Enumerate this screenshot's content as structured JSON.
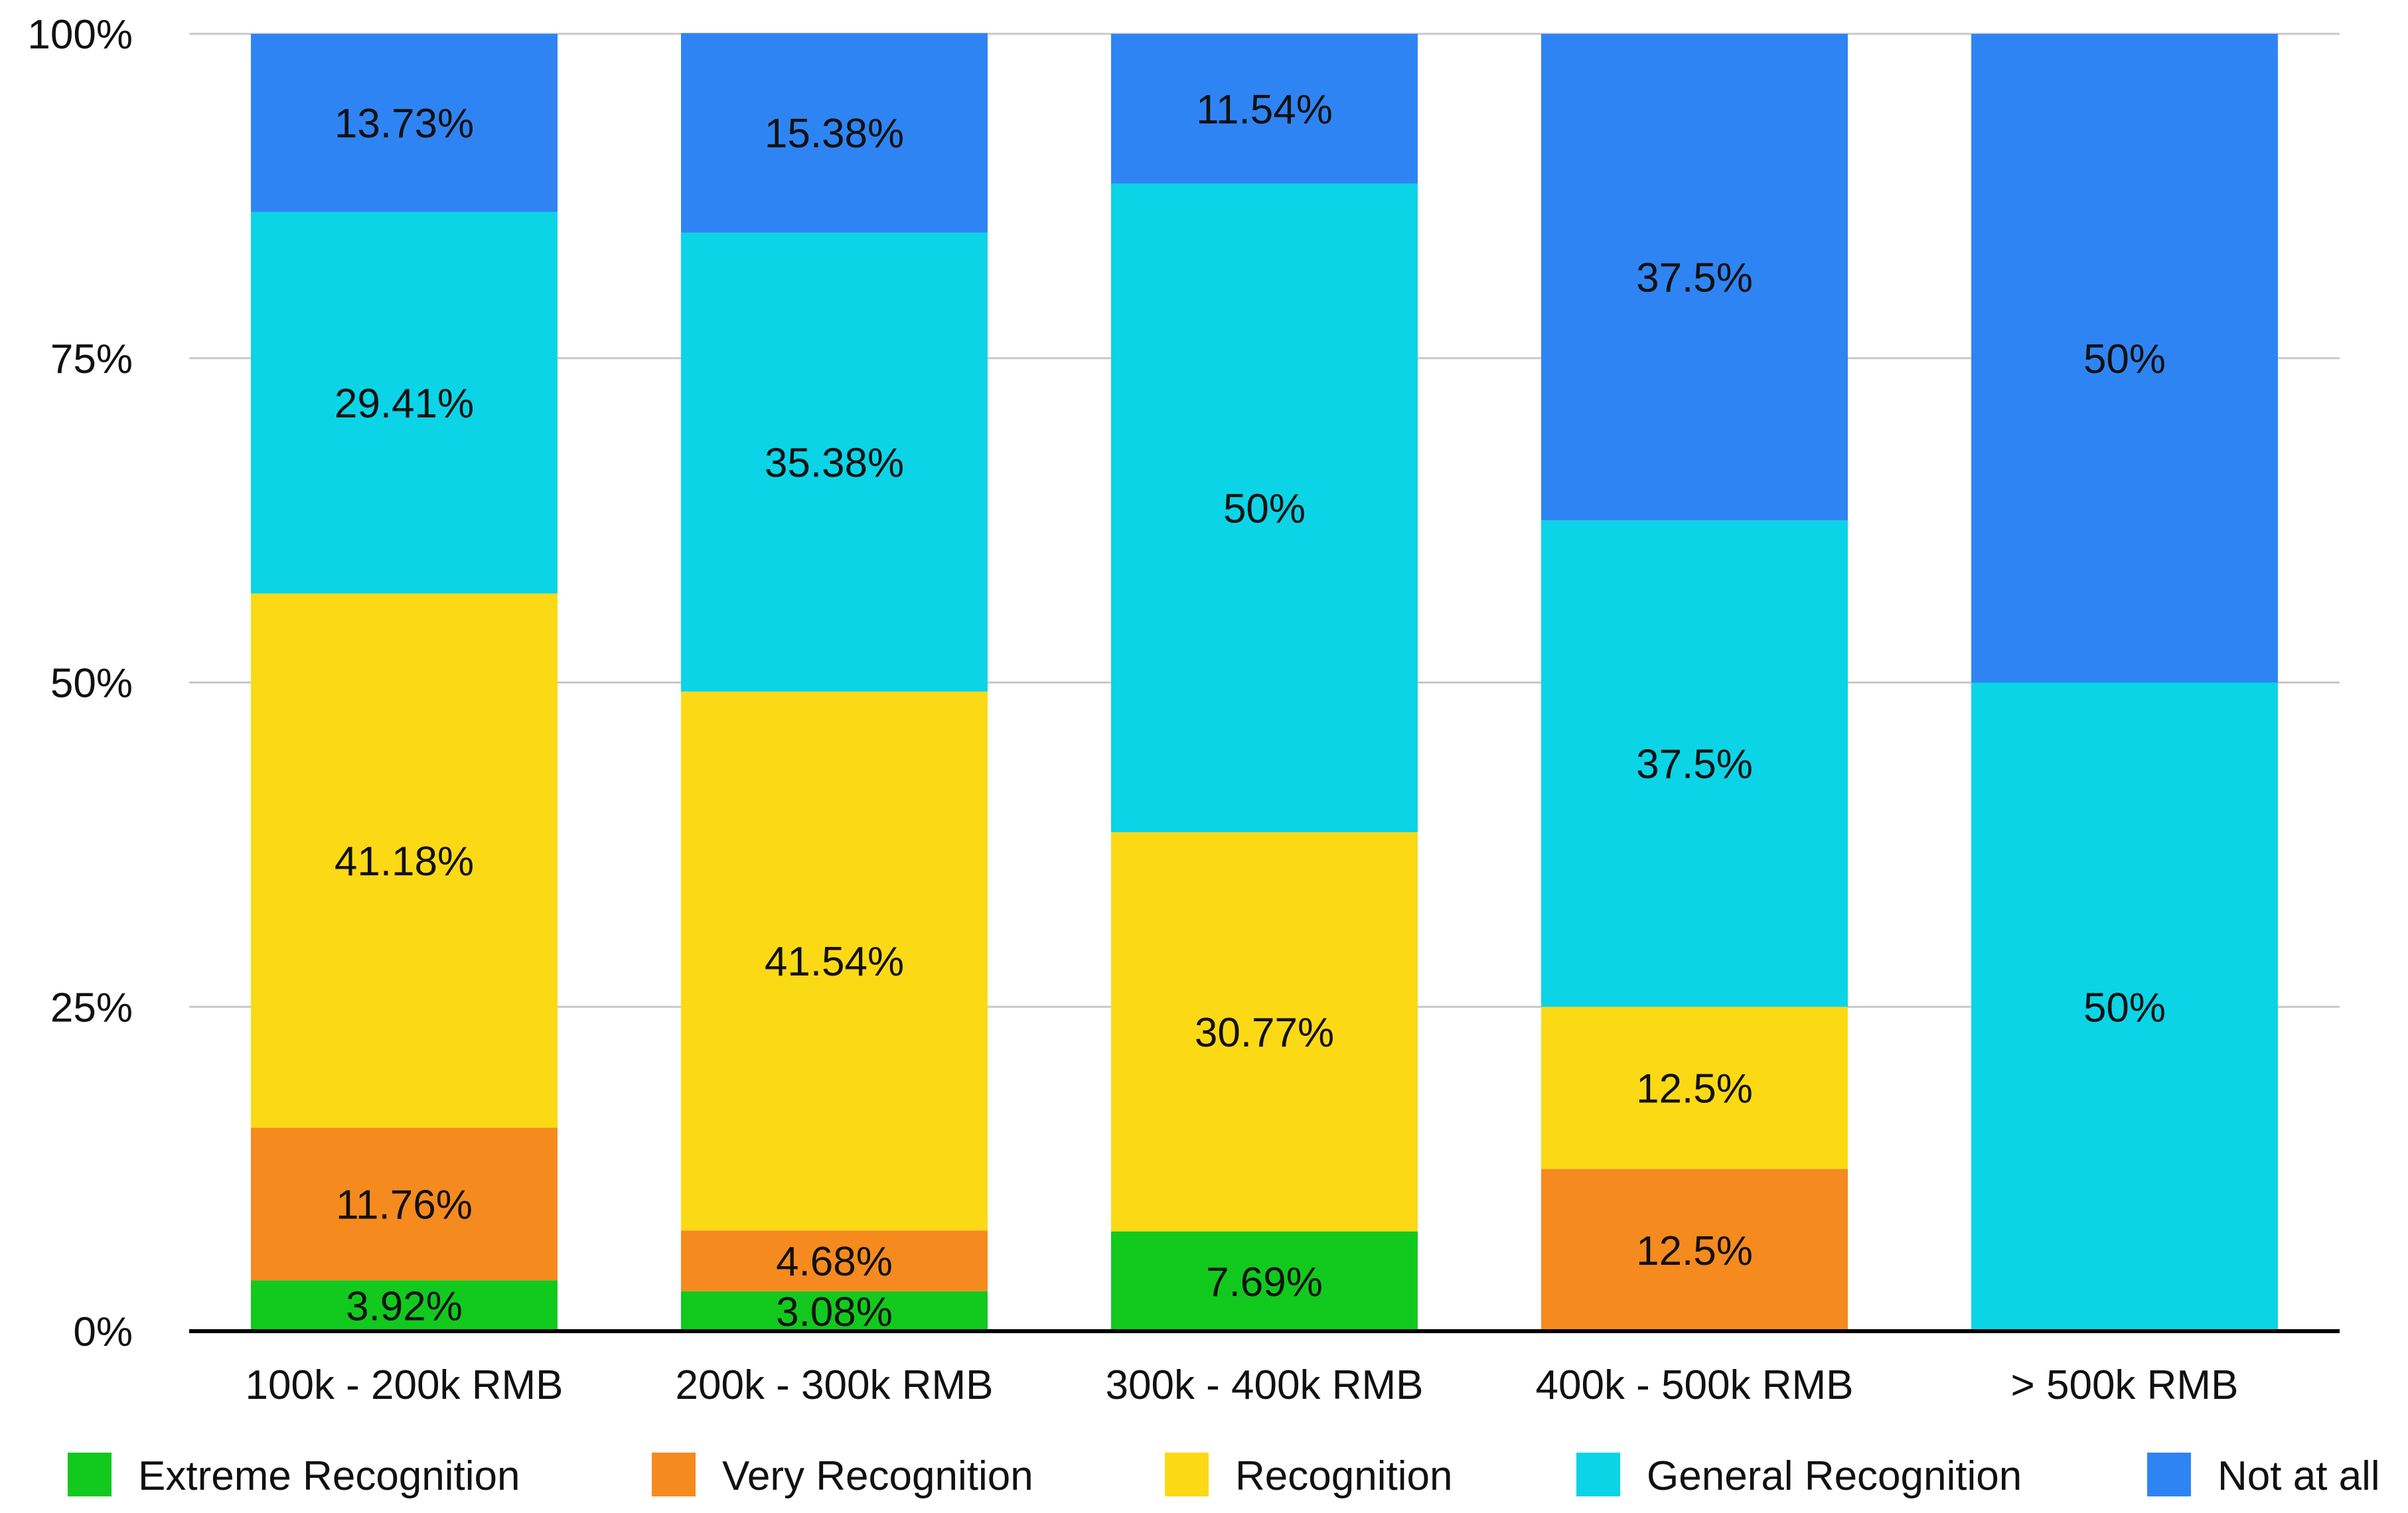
{
  "chart_data": {
    "type": "bar",
    "stacked": true,
    "normalized": true,
    "title": "",
    "xlabel": "",
    "ylabel": "",
    "ylim": [
      0,
      100
    ],
    "y_ticks": [
      "0%",
      "25%",
      "50%",
      "75%",
      "100%"
    ],
    "y_tick_values": [
      0,
      25,
      50,
      75,
      100
    ],
    "grid": true,
    "legend_position": "bottom",
    "categories": [
      "100k - 200k RMB",
      "200k - 300k RMB",
      "300k - 400k RMB",
      "400k - 500k RMB",
      "> 500k RMB"
    ],
    "series": [
      {
        "name": "Extreme Recognition",
        "color": "#12c91e",
        "values": [
          3.92,
          3.08,
          7.69,
          0,
          0
        ],
        "labels": [
          "3.92%",
          "3.08%",
          "7.69%",
          "",
          ""
        ]
      },
      {
        "name": "Very Recognition",
        "color": "#f58a1f",
        "values": [
          11.76,
          4.68,
          0,
          12.5,
          0
        ],
        "labels": [
          "11.76%",
          "4.68%",
          "",
          "12.5%",
          ""
        ]
      },
      {
        "name": "Recognition",
        "color": "#fcd915",
        "values": [
          41.18,
          41.54,
          30.77,
          12.5,
          0
        ],
        "labels": [
          "41.18%",
          "41.54%",
          "30.77%",
          "12.5%",
          ""
        ]
      },
      {
        "name": "General Recognition",
        "color": "#0bd4e6",
        "values": [
          29.41,
          35.38,
          50,
          37.5,
          50
        ],
        "labels": [
          "29.41%",
          "35.38%",
          "50%",
          "37.5%",
          "50%"
        ]
      },
      {
        "name": "Not at all",
        "color": "#2f84f3",
        "values": [
          13.73,
          15.38,
          11.54,
          37.5,
          50
        ],
        "labels": [
          "13.73%",
          "15.38%",
          "11.54%",
          "37.5%",
          "50%"
        ]
      }
    ]
  }
}
